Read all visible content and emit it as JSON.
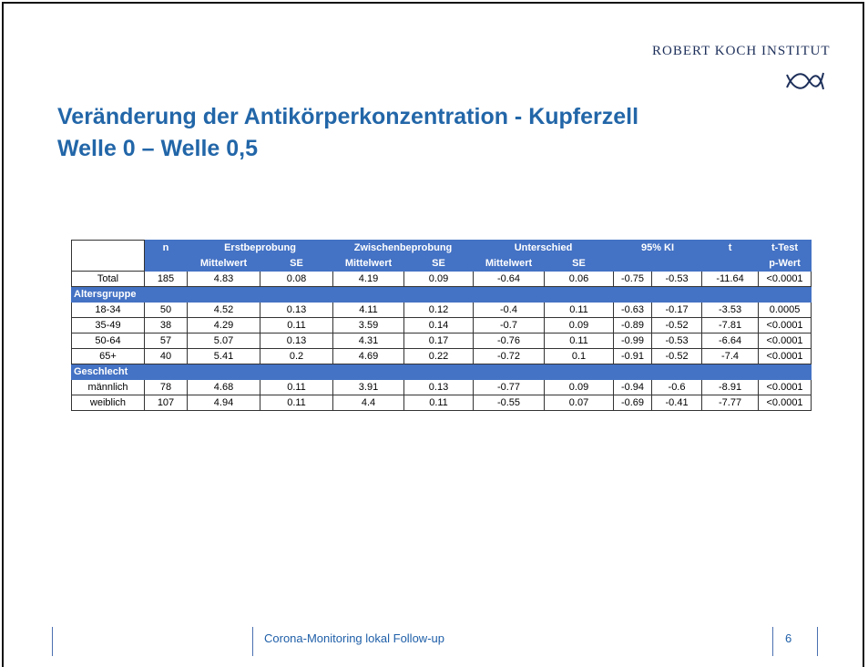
{
  "header": {
    "logo": "ROBERT KOCH INSTITUT",
    "title_line1": "Veränderung der Antikörperkonzentration  - Kupferzell",
    "title_line2": "Welle 0 – Welle 0,5"
  },
  "table": {
    "header_top": [
      "n",
      "Erstbeprobung",
      "Zwischenbeprobung",
      "Unterschied",
      "95% KI",
      "t",
      "t-Test"
    ],
    "header_sub": [
      "Mittelwert",
      "SE",
      "Mittelwert",
      "SE",
      "Mittelwert",
      "SE",
      "p-Wert"
    ],
    "rows": [
      {
        "cells": [
          "Total",
          "185",
          "4.83",
          "0.08",
          "4.19",
          "0.09",
          "-0.64",
          "0.06",
          "-0.75",
          "-0.53",
          "-11.64",
          "<0.0001"
        ]
      },
      {
        "section": "Altersgruppe"
      },
      {
        "cells": [
          "18-34",
          "50",
          "4.52",
          "0.13",
          "4.11",
          "0.12",
          "-0.4",
          "0.11",
          "-0.63",
          "-0.17",
          "-3.53",
          "0.0005"
        ]
      },
      {
        "cells": [
          "35-49",
          "38",
          "4.29",
          "0.11",
          "3.59",
          "0.14",
          "-0.7",
          "0.09",
          "-0.89",
          "-0.52",
          "-7.81",
          "<0.0001"
        ]
      },
      {
        "cells": [
          "50-64",
          "57",
          "5.07",
          "0.13",
          "4.31",
          "0.17",
          "-0.76",
          "0.11",
          "-0.99",
          "-0.53",
          "-6.64",
          "<0.0001"
        ]
      },
      {
        "cells": [
          "65+",
          "40",
          "5.41",
          "0.2",
          "4.69",
          "0.22",
          "-0.72",
          "0.1",
          "-0.91",
          "-0.52",
          "-7.4",
          "<0.0001"
        ]
      },
      {
        "section": "Geschlecht"
      },
      {
        "cells": [
          "männlich",
          "78",
          "4.68",
          "0.11",
          "3.91",
          "0.13",
          "-0.77",
          "0.09",
          "-0.94",
          "-0.6",
          "-8.91",
          "<0.0001"
        ]
      },
      {
        "cells": [
          "weiblich",
          "107",
          "4.94",
          "0.11",
          "4.4",
          "0.11",
          "-0.55",
          "0.07",
          "-0.69",
          "-0.41",
          "-7.77",
          "<0.0001"
        ]
      }
    ]
  },
  "footer": {
    "text": "Corona-Monitoring lokal Follow-up",
    "page": "6"
  }
}
